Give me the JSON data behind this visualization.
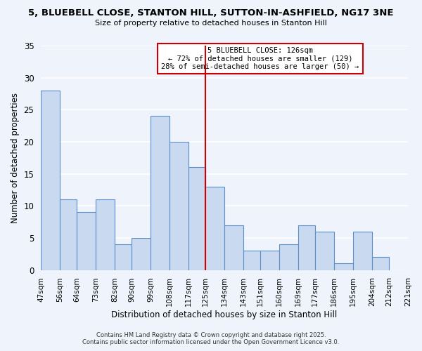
{
  "title_line1": "5, BLUEBELL CLOSE, STANTON HILL, SUTTON-IN-ASHFIELD, NG17 3NE",
  "title_line2": "Size of property relative to detached houses in Stanton Hill",
  "xlabel": "Distribution of detached houses by size in Stanton Hill",
  "ylabel": "Number of detached properties",
  "bin_labels": [
    "47sqm",
    "56sqm",
    "64sqm",
    "73sqm",
    "82sqm",
    "90sqm",
    "99sqm",
    "108sqm",
    "117sqm",
    "125sqm",
    "134sqm",
    "143sqm",
    "151sqm",
    "160sqm",
    "169sqm",
    "177sqm",
    "186sqm",
    "195sqm",
    "204sqm",
    "212sqm",
    "221sqm"
  ],
  "bin_edges": [
    47,
    56,
    64,
    73,
    82,
    90,
    99,
    108,
    117,
    125,
    134,
    143,
    151,
    160,
    169,
    177,
    186,
    195,
    204,
    212,
    221
  ],
  "bar_heights": [
    28,
    11,
    9,
    11,
    4,
    5,
    24,
    20,
    16,
    13,
    7,
    3,
    3,
    4,
    7,
    6,
    1,
    6,
    2,
    0
  ],
  "bar_color": "#c9d9f0",
  "bar_edge_color": "#5b8fc9",
  "vline_x": 125,
  "vline_color": "#cc0000",
  "annotation_title": "5 BLUEBELL CLOSE: 126sqm",
  "annotation_line1": "← 72% of detached houses are smaller (129)",
  "annotation_line2": "28% of semi-detached houses are larger (50) →",
  "annotation_box_edge_color": "#cc0000",
  "annotation_box_face_color": "#ffffff",
  "ylim": [
    0,
    35
  ],
  "yticks": [
    0,
    5,
    10,
    15,
    20,
    25,
    30,
    35
  ],
  "footer_line1": "Contains HM Land Registry data © Crown copyright and database right 2025.",
  "footer_line2": "Contains public sector information licensed under the Open Government Licence v3.0.",
  "background_color": "#eef3fc",
  "grid_color": "#ffffff"
}
